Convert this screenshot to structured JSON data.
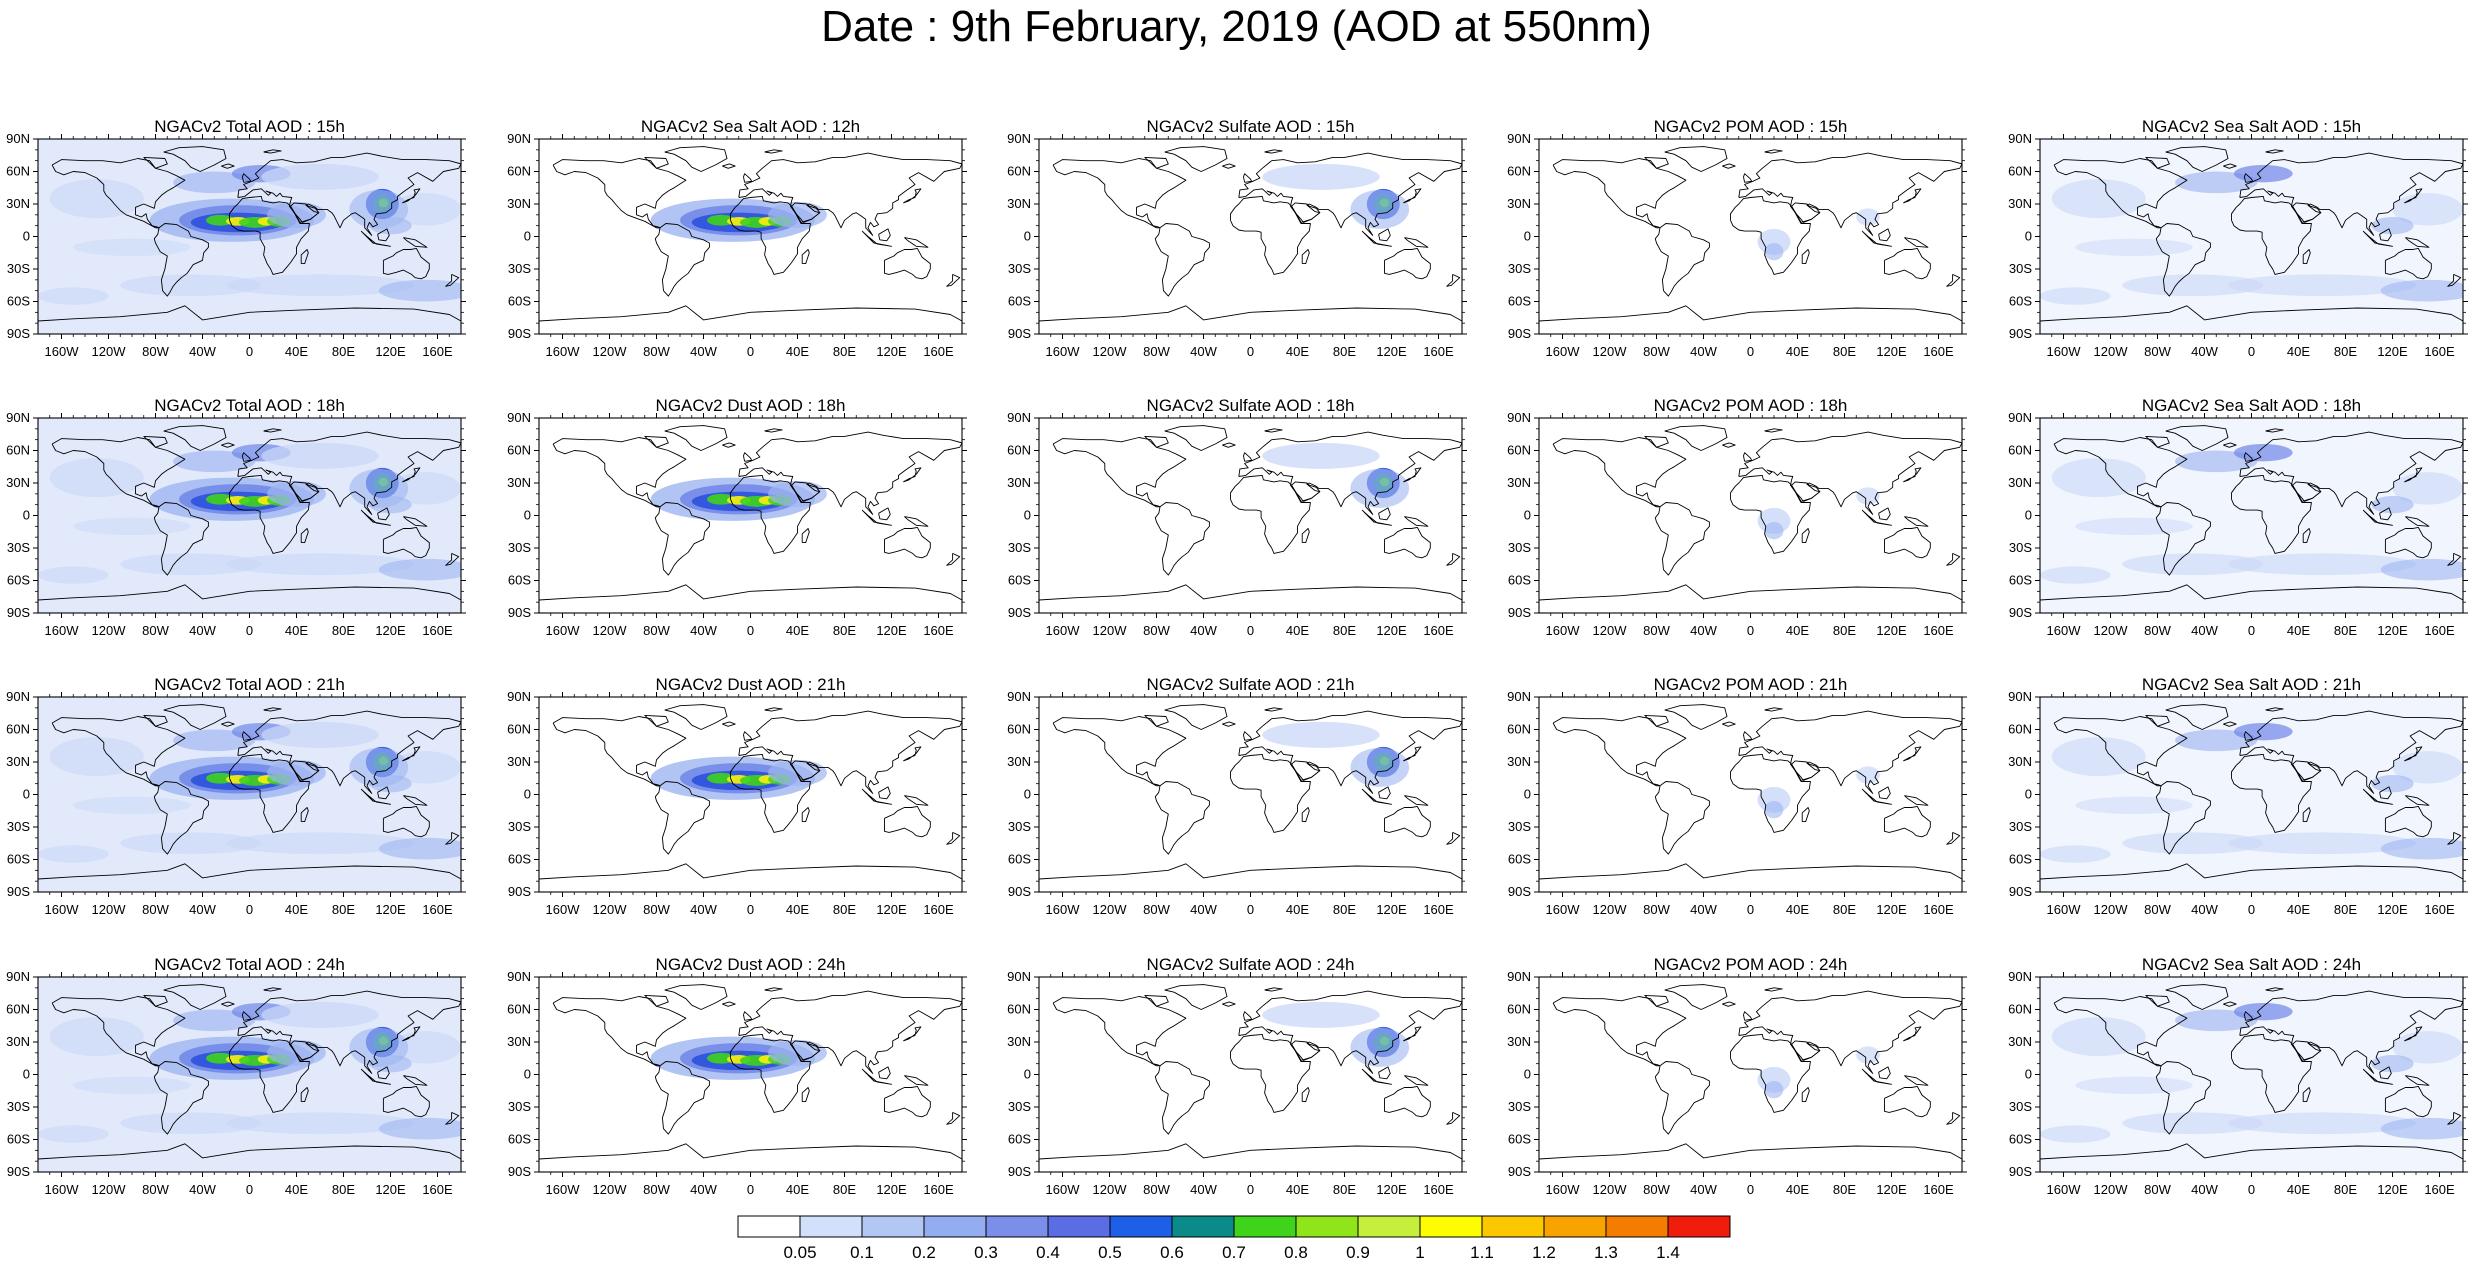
{
  "title": "Date : 9th February, 2019 (AOD at 550nm)",
  "panels": [
    [
      "NGACv2 Total AOD : 15h",
      "NGACv2 Sea Salt  AOD : 12h",
      "NGACv2 Sulfate AOD : 15h",
      "NGACv2 POM AOD : 15h",
      "NGACv2 Sea Salt  AOD : 15h"
    ],
    [
      "NGACv2 Total AOD : 18h",
      "NGACv2 Dust AOD : 18h",
      "NGACv2 Sulfate AOD : 18h",
      "NGACv2 POM AOD : 18h",
      "NGACv2 Sea Salt  AOD : 18h"
    ],
    [
      "NGACv2 Total AOD : 21h",
      "NGACv2 Dust AOD : 21h",
      "NGACv2 Sulfate AOD : 21h",
      "NGACv2 POM AOD : 21h",
      "NGACv2 Sea Salt  AOD : 21h"
    ],
    [
      "NGACv2 Total AOD : 24h",
      "NGACv2 Dust AOD : 24h",
      "NGACv2 Sulfate AOD : 24h",
      "NGACv2 POM AOD : 24h",
      "NGACv2 Sea Salt  AOD : 24h"
    ]
  ],
  "lat_ticks": [
    "90N",
    "60N",
    "30N",
    "0",
    "30S",
    "60S",
    "90S"
  ],
  "lon_ticks": [
    "160W",
    "120W",
    "80W",
    "40W",
    "0",
    "40E",
    "80E",
    "120E",
    "160E"
  ],
  "colorbar": {
    "labels": [
      "0.05",
      "0.1",
      "0.2",
      "0.3",
      "0.4",
      "0.5",
      "0.6",
      "0.7",
      "0.8",
      "0.9",
      "1",
      "1.1",
      "1.2",
      "1.3",
      "1.4"
    ],
    "colors": [
      "#ffffff",
      "#d3e0fb",
      "#b3c7f5",
      "#93adf0",
      "#7a8eea",
      "#5b6de4",
      "#1e5fe8",
      "#0b8a8a",
      "#3fd31c",
      "#8fe51a",
      "#c5ef3a",
      "#fdfd00",
      "#fbc800",
      "#f8a300",
      "#f47d00",
      "#f01d0d"
    ]
  },
  "map_colors": {
    "light": "#c9d7f7",
    "mid": "#9fb5f1",
    "blue": "#6f86e8",
    "deep": "#2c52db",
    "teal": "#16918a",
    "green": "#3fd31c",
    "yellow": "#f0ec12",
    "coast": "#000000"
  }
}
